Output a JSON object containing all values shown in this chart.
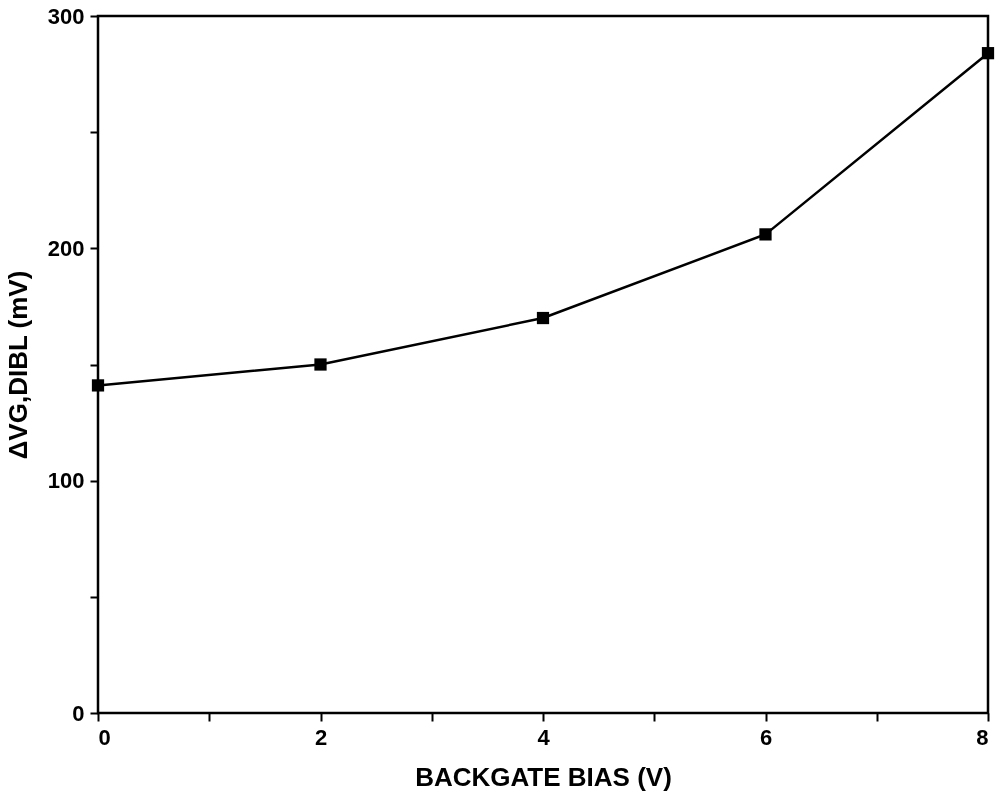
{
  "chart_data": {
    "type": "line",
    "xlabel": "BACKGATE BIAS (V)",
    "ylabel": "ΔVG,DIBL (mV)",
    "x": [
      0,
      2,
      4,
      6,
      8
    ],
    "series": [
      {
        "color": "#000000",
        "values": [
          141,
          150,
          170,
          206,
          284
        ]
      }
    ],
    "xlim": [
      0,
      8
    ],
    "ylim": [
      0,
      300
    ],
    "xticks": [
      0,
      {
        "value": 1,
        "label": null
      },
      2,
      {
        "value": 3,
        "label": null
      },
      4,
      {
        "value": 5,
        "label": null
      },
      6,
      {
        "value": 7,
        "label": null
      },
      8
    ],
    "yticks": [
      0,
      {
        "value": 50,
        "label": null
      },
      100,
      {
        "value": 150,
        "label": null
      },
      200,
      {
        "value": 250,
        "label": null
      },
      300
    ],
    "marker": "square",
    "line_style": "solid",
    "grid": false
  }
}
